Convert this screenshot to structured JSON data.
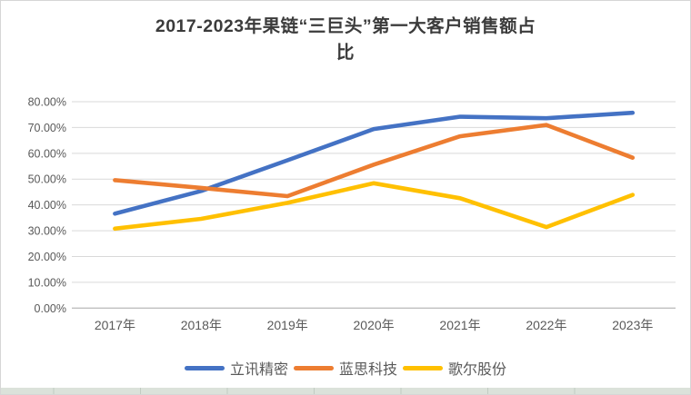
{
  "title": {
    "line1": "2017-2023年果链“三巨头”第一大客户销售额占",
    "line2": "比"
  },
  "chart_data": {
    "type": "line",
    "title": "2017-2023年果链“三巨头”第一大客户销售额占比",
    "categories": [
      "2017年",
      "2018年",
      "2019年",
      "2020年",
      "2021年",
      "2022年",
      "2023年"
    ],
    "series": [
      {
        "name": "立讯精密",
        "color": "#4472C4",
        "values": [
          36.6,
          45.4,
          57.3,
          69.4,
          74.2,
          73.6,
          75.7
        ]
      },
      {
        "name": "蓝思科技",
        "color": "#ED7D31",
        "values": [
          49.6,
          46.6,
          43.4,
          55.6,
          66.6,
          71.0,
          58.3
        ]
      },
      {
        "name": "歌尔股份",
        "color": "#FFC000",
        "values": [
          30.8,
          34.6,
          40.8,
          48.4,
          42.6,
          31.4,
          43.9
        ]
      }
    ],
    "ylim": [
      0,
      80
    ],
    "ytick_labels": [
      "0.00%",
      "10.00%",
      "20.00%",
      "30.00%",
      "40.00%",
      "50.00%",
      "60.00%",
      "70.00%",
      "80.00%"
    ],
    "grid": "horizontal",
    "legend_position": "bottom",
    "colors": {
      "gridline": "#d9d9d9",
      "axis_line": "#bfbfbf",
      "tick_text": "#595959",
      "title_text": "#3b3b3b"
    }
  }
}
